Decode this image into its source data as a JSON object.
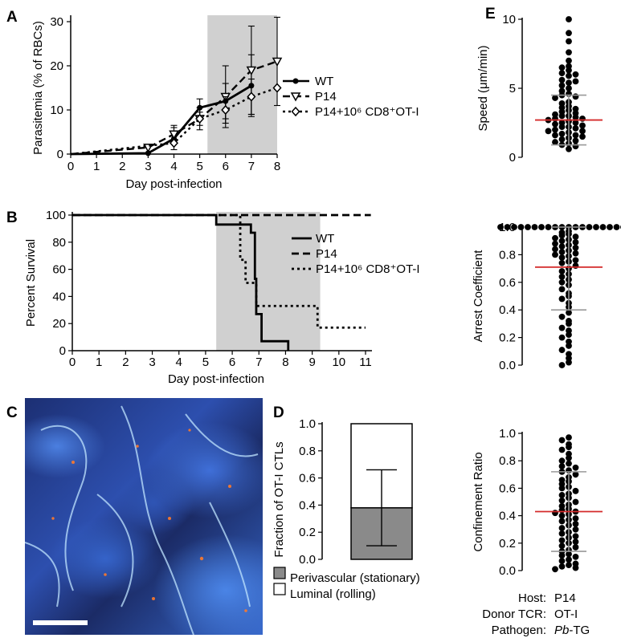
{
  "panels": {
    "A": {
      "letter": "A"
    },
    "B": {
      "letter": "B"
    },
    "C": {
      "letter": "C"
    },
    "D": {
      "letter": "D"
    },
    "E": {
      "letter": "E"
    }
  },
  "footer": {
    "host_label": "Host:",
    "host_value": "P14",
    "donor_label": "Donor TCR:",
    "donor_value": "OT-I",
    "pathogen_label": "Pathogen:",
    "pathogen_value_italic": "Pb",
    "pathogen_value_rest": "-TG"
  },
  "chart_data": [
    {
      "id": "A",
      "type": "line",
      "ylabel": "Parasitemia (% of RBCs)",
      "xlabel": "Day post-infection",
      "xlim": [
        0,
        8
      ],
      "ylim": [
        0,
        30
      ],
      "xticks": [
        "0",
        "1",
        "2",
        "3",
        "4",
        "5",
        "6",
        "7",
        "8"
      ],
      "yticks": [
        "0",
        "10",
        "20",
        "30"
      ],
      "shaded_x_range": [
        5.3,
        8
      ],
      "series": [
        {
          "name": "WT",
          "marker": "circle",
          "dash": "solid",
          "x": [
            0,
            3,
            4,
            5,
            6,
            7
          ],
          "y": [
            0,
            0.2,
            3.5,
            10.5,
            12,
            15.5
          ],
          "err": [
            0,
            0,
            2.5,
            2,
            4,
            7
          ]
        },
        {
          "name": "P14",
          "marker": "triangle-down",
          "dash": "dashed",
          "x": [
            0,
            3,
            4,
            5,
            6,
            7,
            8
          ],
          "y": [
            0,
            1.5,
            4.5,
            8,
            13,
            19,
            21
          ],
          "err": [
            0,
            0,
            2,
            2.5,
            7,
            10,
            10
          ]
        },
        {
          "name": "P14+10⁶ CD8⁺OT-I",
          "marker": "diamond",
          "dash": "dotted",
          "x": [
            0,
            4,
            5,
            6,
            7,
            8
          ],
          "y": [
            0,
            2.5,
            8,
            10,
            13,
            15
          ],
          "err": [
            0,
            0,
            1.5,
            3,
            4,
            0
          ]
        }
      ]
    },
    {
      "id": "B",
      "type": "line",
      "ylabel": "Percent Survival",
      "xlabel": "Day post-infection",
      "xlim": [
        0,
        11
      ],
      "ylim": [
        0,
        100
      ],
      "xticks": [
        "0",
        "1",
        "2",
        "3",
        "4",
        "5",
        "6",
        "7",
        "8",
        "9",
        "10",
        "11"
      ],
      "yticks": [
        "0",
        "20",
        "40",
        "60",
        "80",
        "100"
      ],
      "shaded_x_range": [
        5.4,
        9.3
      ],
      "series": [
        {
          "name": "WT",
          "dash": "solid",
          "steps": [
            [
              0,
              100
            ],
            [
              5.4,
              100
            ],
            [
              5.4,
              93
            ],
            [
              6.7,
              93
            ],
            [
              6.7,
              87
            ],
            [
              6.85,
              87
            ],
            [
              6.85,
              53
            ],
            [
              6.9,
              53
            ],
            [
              6.9,
              27
            ],
            [
              7.1,
              27
            ],
            [
              7.1,
              7
            ],
            [
              8.1,
              7
            ],
            [
              8.1,
              0
            ]
          ]
        },
        {
          "name": "P14",
          "dash": "dashed",
          "steps": [
            [
              0,
              100
            ],
            [
              11.2,
              100
            ]
          ]
        },
        {
          "name": "P14+10⁶ CD8⁺OT-I",
          "dash": "dotted",
          "steps": [
            [
              0,
              100
            ],
            [
              6.3,
              100
            ],
            [
              6.3,
              67
            ],
            [
              6.5,
              67
            ],
            [
              6.5,
              50
            ],
            [
              6.9,
              50
            ],
            [
              6.9,
              33
            ],
            [
              9.2,
              33
            ],
            [
              9.2,
              17
            ],
            [
              11,
              17
            ]
          ]
        }
      ]
    },
    {
      "id": "D",
      "type": "bar",
      "ylabel": "Fraction of OT-I CTLs",
      "ylim": [
        0,
        1
      ],
      "yticks": [
        "0.0",
        "0.2",
        "0.4",
        "0.6",
        "0.8",
        "1.0"
      ],
      "stack": [
        {
          "name": "Luminal (rolling)",
          "value": 0.38,
          "color": "#8a8a8a"
        },
        {
          "name": "Perivascular (stationary)",
          "value": 0.62,
          "color": "#ffffff"
        }
      ],
      "error": [
        0.1,
        0.66
      ]
    },
    {
      "id": "E1",
      "type": "scatter",
      "ylabel": "Speed (μm/min)",
      "ylim": [
        0,
        10
      ],
      "yticks": [
        "0",
        "5",
        "10"
      ],
      "mean": 2.7,
      "sd_low": 0.9,
      "sd_high": 4.5,
      "values": [
        10,
        9.0,
        8.4,
        7.6,
        7.0,
        6.6,
        6.5,
        6.3,
        6.1,
        6.0,
        5.9,
        5.6,
        5.5,
        5.4,
        5.2,
        5.0,
        4.8,
        4.6,
        4.5,
        4.4,
        4.3,
        4.0,
        3.9,
        3.7,
        3.6,
        3.5,
        3.4,
        3.3,
        3.2,
        3.1,
        3.0,
        3.0,
        2.9,
        2.8,
        2.8,
        2.7,
        2.6,
        2.5,
        2.5,
        2.4,
        2.3,
        2.2,
        2.2,
        2.1,
        2.0,
        1.9,
        1.9,
        1.8,
        1.7,
        1.6,
        1.6,
        1.5,
        1.4,
        1.3,
        1.2,
        1.1,
        1.0,
        0.9,
        0.8,
        0.6
      ]
    },
    {
      "id": "E2",
      "type": "scatter",
      "ylabel": "Arrest Coefficient",
      "ylim": [
        0,
        1
      ],
      "yticks": [
        "0.0",
        "0.2",
        "0.4",
        "0.6",
        "0.8",
        "1.0"
      ],
      "mean": 0.71,
      "sd_low": 0.4,
      "sd_high": 1.0,
      "values": [
        1,
        1,
        1,
        1,
        1,
        1,
        1,
        1,
        1,
        1,
        1,
        1,
        1,
        1,
        1,
        1,
        1,
        1,
        1,
        1,
        0.97,
        0.96,
        0.95,
        0.94,
        0.93,
        0.92,
        0.91,
        0.9,
        0.89,
        0.88,
        0.87,
        0.86,
        0.85,
        0.84,
        0.83,
        0.82,
        0.81,
        0.8,
        0.79,
        0.78,
        0.76,
        0.75,
        0.74,
        0.72,
        0.7,
        0.68,
        0.66,
        0.64,
        0.62,
        0.6,
        0.58,
        0.55,
        0.52,
        0.5,
        0.48,
        0.45,
        0.42,
        0.38,
        0.35,
        0.32,
        0.3,
        0.27,
        0.25,
        0.22,
        0.2,
        0.17,
        0.14,
        0.11,
        0.08,
        0.05,
        0.02,
        0.0
      ]
    },
    {
      "id": "E3",
      "type": "scatter",
      "ylabel": "Confinement Ratio",
      "ylim": [
        0,
        1
      ],
      "yticks": [
        "0.0",
        "0.2",
        "0.4",
        "0.6",
        "0.8",
        "1.0"
      ],
      "mean": 0.43,
      "sd_low": 0.14,
      "sd_high": 0.72,
      "values": [
        0.97,
        0.95,
        0.92,
        0.9,
        0.88,
        0.85,
        0.82,
        0.8,
        0.78,
        0.76,
        0.75,
        0.73,
        0.72,
        0.7,
        0.68,
        0.66,
        0.65,
        0.63,
        0.61,
        0.6,
        0.58,
        0.56,
        0.55,
        0.53,
        0.51,
        0.5,
        0.48,
        0.47,
        0.45,
        0.44,
        0.43,
        0.42,
        0.41,
        0.4,
        0.38,
        0.37,
        0.36,
        0.34,
        0.33,
        0.31,
        0.3,
        0.28,
        0.27,
        0.25,
        0.24,
        0.22,
        0.21,
        0.2,
        0.18,
        0.17,
        0.15,
        0.14,
        0.12,
        0.11,
        0.1,
        0.08,
        0.07,
        0.05,
        0.04,
        0.03,
        0.02,
        0.01
      ]
    }
  ]
}
